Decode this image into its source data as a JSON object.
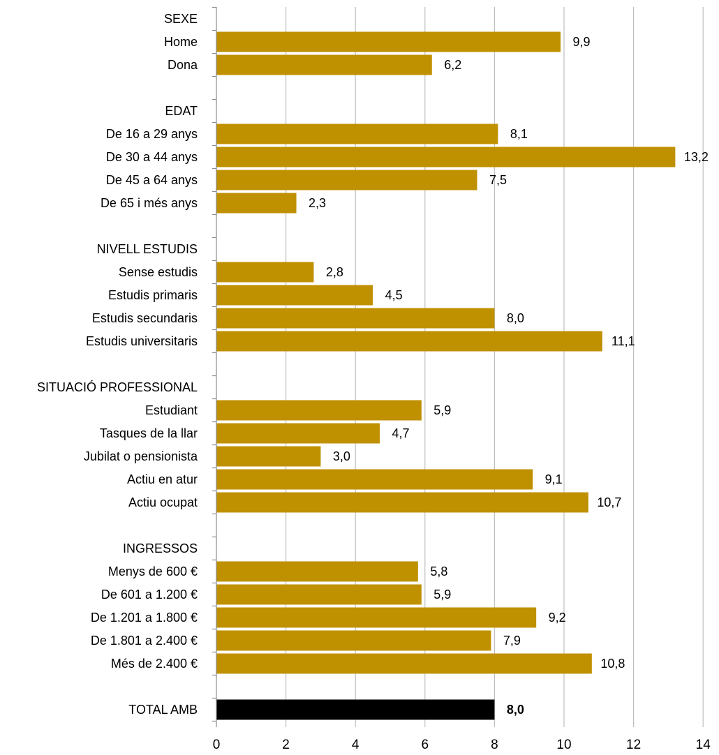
{
  "chart_data": {
    "type": "bar",
    "orientation": "horizontal",
    "title": "",
    "xlabel": "",
    "ylabel": "",
    "xlim": [
      0,
      14
    ],
    "x_ticks": [
      "0",
      "2",
      "4",
      "6",
      "8",
      "10",
      "12",
      "14"
    ],
    "grid": "vertical",
    "legend": "none",
    "colors": {
      "bar": "#BF9000",
      "total_bar": "#000000"
    },
    "rows": [
      {
        "label": "SEXE",
        "header": true
      },
      {
        "label": "Home",
        "value": 9.9,
        "value_label": "9,9"
      },
      {
        "label": "Dona",
        "value": 6.2,
        "value_label": "6,2"
      },
      {
        "label": "",
        "spacer": true
      },
      {
        "label": "EDAT",
        "header": true
      },
      {
        "label": "De 16 a 29 anys",
        "value": 8.1,
        "value_label": "8,1"
      },
      {
        "label": "De 30 a 44 anys",
        "value": 13.2,
        "value_label": "13,2"
      },
      {
        "label": "De 45 a 64 anys",
        "value": 7.5,
        "value_label": "7,5"
      },
      {
        "label": "De 65 i més anys",
        "value": 2.3,
        "value_label": "2,3"
      },
      {
        "label": "",
        "spacer": true
      },
      {
        "label": "NIVELL ESTUDIS",
        "header": true
      },
      {
        "label": "Sense estudis",
        "value": 2.8,
        "value_label": "2,8"
      },
      {
        "label": "Estudis primaris",
        "value": 4.5,
        "value_label": "4,5"
      },
      {
        "label": "Estudis secundaris",
        "value": 8.0,
        "value_label": "8,0"
      },
      {
        "label": "Estudis universitaris",
        "value": 11.1,
        "value_label": "11,1"
      },
      {
        "label": "",
        "spacer": true
      },
      {
        "label": "SITUACIÓ PROFESSIONAL",
        "header": true
      },
      {
        "label": "Estudiant",
        "value": 5.9,
        "value_label": "5,9"
      },
      {
        "label": "Tasques de la llar",
        "value": 4.7,
        "value_label": "4,7"
      },
      {
        "label": "Jubilat o pensionista",
        "value": 3.0,
        "value_label": "3,0"
      },
      {
        "label": "Actiu en atur",
        "value": 9.1,
        "value_label": "9,1"
      },
      {
        "label": "Actiu ocupat",
        "value": 10.7,
        "value_label": "10,7"
      },
      {
        "label": "",
        "spacer": true
      },
      {
        "label": "INGRESSOS",
        "header": true
      },
      {
        "label": "Menys de  600 €",
        "value": 5.8,
        "value_label": "5,8"
      },
      {
        "label": "De 601 a 1.200 €",
        "value": 5.9,
        "value_label": "5,9"
      },
      {
        "label": "De 1.201 a 1.800 €",
        "value": 9.2,
        "value_label": "9,2"
      },
      {
        "label": "De 1.801 a 2.400 €",
        "value": 7.9,
        "value_label": "7,9"
      },
      {
        "label": "Més de 2.400 €",
        "value": 10.8,
        "value_label": "10,8"
      },
      {
        "label": "",
        "spacer": true
      },
      {
        "label": "TOTAL AMB",
        "value": 8.0,
        "value_label": "8,0",
        "total": true
      }
    ]
  }
}
